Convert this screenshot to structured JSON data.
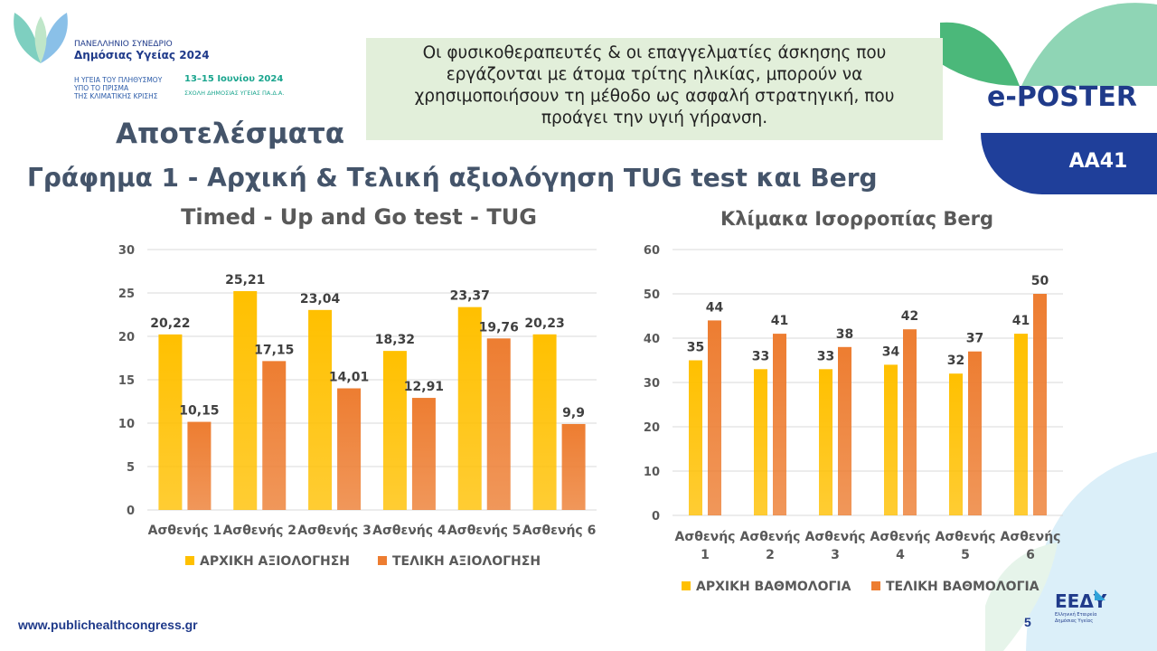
{
  "header": {
    "congress_line": "ΠΑΝΕΛΛΗΝΙΟ ΣΥΝΕΔΡΙΟ",
    "congress_name": "Δημόσιας Υγείας 2024",
    "theme_lines": [
      "Η ΥΓΕΙΑ ΤΟΥ ΠΛΗΘΥΣΜΟΥ",
      "ΥΠΟ ΤΟ ΠΡΙΣΜΑ",
      "ΤΗΣ ΚΛΙΜΑΤΙΚΗΣ ΚΡΙΣΗΣ"
    ],
    "dates": "13–15 Ιουνίου 2024",
    "venue": "ΣΧΟΛΗ ΔΗΜΟΣΙΑΣ ΥΓΕΙΑΣ ΠΑ.Δ.Α."
  },
  "tagline": "Οι φυσικοθεραπευτές & οι επαγγελματίες άσκησης που εργάζονται με άτομα τρίτης ηλικίας, μπορούν να χρησιμοποιήσουν τη μέθοδο ως ασφαλή στρατηγική, που προάγει την υγιή γήρανση.",
  "results_title": "Αποτελέσματα",
  "graph_title": "Γράφημα 1 - Αρχική & Τελική αξιολόγηση TUG test και Berg",
  "badge": {
    "label": "e-POSTER",
    "code": "AA41"
  },
  "footer": {
    "website": "www.publichealthcongress.gr",
    "page_number": "5",
    "society_name": "Ελληνική Εταιρεία Δημόσιας Υγείας"
  },
  "colors": {
    "initial": "#ffc000",
    "final": "#ed7d31",
    "title": "#44546a",
    "brand_blue": "#1f3a8a"
  },
  "chart_data": [
    {
      "type": "bar",
      "title": "Timed - Up and Go test - TUG",
      "categories": [
        "Ασθενής 1",
        "Ασθενής 2",
        "Ασθενής 3",
        "Ασθενής 4",
        "Ασθενής 5",
        "Ασθενής 6"
      ],
      "series": [
        {
          "name": "ΑΡΧΙΚΗ ΑΞΙΟΛΟΓΗΣΗ",
          "values": [
            20.22,
            25.21,
            23.04,
            18.32,
            23.37,
            20.23
          ],
          "labels": [
            "20,22",
            "25,21",
            "23,04",
            "18,32",
            "23,37",
            "20,23"
          ]
        },
        {
          "name": "ΤΕΛΙΚΗ ΑΞΙΟΛΟΓΗΣΗ",
          "values": [
            10.15,
            17.15,
            14.01,
            12.91,
            19.76,
            9.9
          ],
          "labels": [
            "10,15",
            "17,15",
            "14,01",
            "12,91",
            "19,76",
            "9,9"
          ]
        }
      ],
      "ylim": [
        0,
        30
      ],
      "yticks": [
        0,
        5,
        10,
        15,
        20,
        25,
        30
      ],
      "grid": true,
      "legend": "bottom"
    },
    {
      "type": "bar",
      "title": "Κλίμακα Ισορροπίας Berg",
      "categories": [
        [
          "Ασθενής",
          "1"
        ],
        [
          "Ασθενής",
          "2"
        ],
        [
          "Ασθενής",
          "3"
        ],
        [
          "Ασθενής",
          "4"
        ],
        [
          "Ασθενής",
          "5"
        ],
        [
          "Ασθενής",
          "6"
        ]
      ],
      "series": [
        {
          "name": "ΑΡΧΙΚΗ ΒΑΘΜΟΛΟΓΙΑ",
          "values": [
            35,
            33,
            33,
            34,
            32,
            41
          ],
          "labels": [
            "35",
            "33",
            "33",
            "34",
            "32",
            "41"
          ]
        },
        {
          "name": "ΤΕΛΙΚΗ ΒΑΘΜΟΛΟΓΙΑ",
          "values": [
            44,
            41,
            38,
            42,
            37,
            50
          ],
          "labels": [
            "44",
            "41",
            "38",
            "42",
            "37",
            "50"
          ]
        }
      ],
      "ylim": [
        0,
        60
      ],
      "yticks": [
        0,
        10,
        20,
        30,
        40,
        50,
        60
      ],
      "grid": true,
      "legend": "bottom"
    }
  ]
}
